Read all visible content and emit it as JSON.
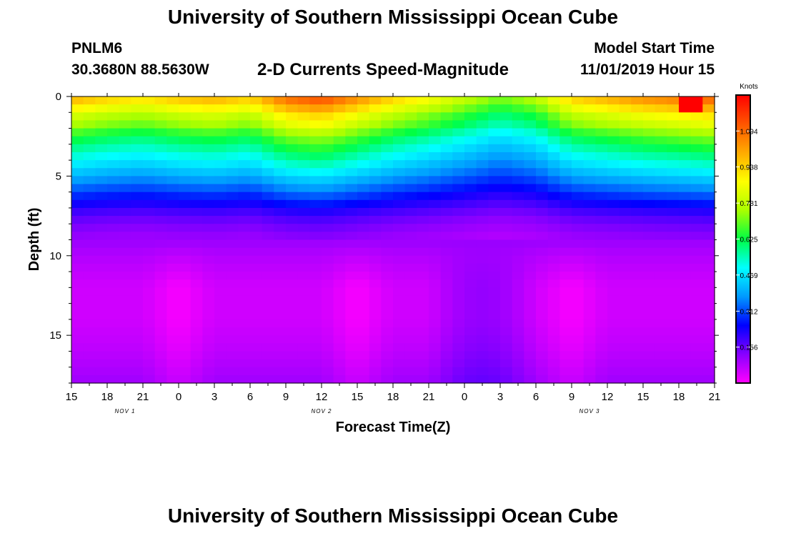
{
  "header": {
    "title": "University of Southern Mississippi Ocean Cube",
    "station": "PNLM6",
    "coords": "30.3680N 88.5630W",
    "subtitle": "2-D Currents Speed-Magnitude",
    "model_start_label": "Model Start Time",
    "model_start_value": "11/01/2019 Hour 15"
  },
  "footer": {
    "title": "University of Southern Mississippi Ocean Cube"
  },
  "chart_data": {
    "type": "heatmap",
    "title": "2-D Currents Speed-Magnitude",
    "xlabel": "Forecast Time(Z)",
    "ylabel": "Depth (ft)",
    "x_tick_labels": [
      "15",
      "18",
      "21",
      "0",
      "3",
      "6",
      "9",
      "12",
      "15",
      "18",
      "21",
      "0",
      "3",
      "6",
      "9",
      "12",
      "15",
      "18",
      "21"
    ],
    "x_range_hours": [
      0,
      54
    ],
    "day_labels": [
      {
        "text": "NOV 1",
        "hour": 4.5
      },
      {
        "text": "NOV 2",
        "hour": 21
      },
      {
        "text": "NOV 3",
        "hour": 43.5
      }
    ],
    "y_ticks": [
      0,
      5,
      10,
      15
    ],
    "ylim": [
      0,
      18
    ],
    "colorbar": {
      "label": "Knots",
      "ticks": [
        "1.094",
        "0.938",
        "0.781",
        "0.625",
        "0.469",
        "0.312",
        "0.156"
      ],
      "range": [
        0,
        1.25
      ],
      "colors": [
        "#ff00ff",
        "#8800ff",
        "#0000ff",
        "#0099ff",
        "#00ffff",
        "#00ff44",
        "#aaff00",
        "#ffff00",
        "#ffaa00",
        "#ff5500",
        "#ff0000"
      ]
    },
    "surface_speed_profile": [
      {
        "depth": 0.0,
        "speed": 0.98
      },
      {
        "depth": 0.5,
        "speed": 0.96
      },
      {
        "depth": 1.0,
        "speed": 0.82
      },
      {
        "depth": 1.5,
        "speed": 0.8
      },
      {
        "depth": 2.0,
        "speed": 0.72
      },
      {
        "depth": 2.5,
        "speed": 0.65
      },
      {
        "depth": 3.5,
        "speed": 0.55
      },
      {
        "depth": 4.5,
        "speed": 0.46
      },
      {
        "depth": 5.5,
        "speed": 0.36
      },
      {
        "depth": 6.5,
        "speed": 0.26
      },
      {
        "depth": 7.5,
        "speed": 0.17
      },
      {
        "depth": 8.5,
        "speed": 0.12
      },
      {
        "depth": 10.0,
        "speed": 0.08
      },
      {
        "depth": 12.0,
        "speed": 0.05
      },
      {
        "depth": 14.0,
        "speed": 0.05
      },
      {
        "depth": 16.0,
        "speed": 0.07
      },
      {
        "depth": 18.0,
        "speed": 0.1
      }
    ],
    "time_modulation": [
      {
        "hour": 0,
        "factor": 1.0
      },
      {
        "hour": 3,
        "factor": 0.95
      },
      {
        "hour": 6,
        "factor": 0.92
      },
      {
        "hour": 9,
        "factor": 0.97
      },
      {
        "hour": 12,
        "factor": 1.0
      },
      {
        "hour": 15,
        "factor": 0.95
      },
      {
        "hour": 18,
        "factor": 1.1
      },
      {
        "hour": 21,
        "factor": 1.15
      },
      {
        "hour": 24,
        "factor": 1.05
      },
      {
        "hour": 27,
        "factor": 0.95
      },
      {
        "hour": 30,
        "factor": 0.88
      },
      {
        "hour": 33,
        "factor": 0.8
      },
      {
        "hour": 36,
        "factor": 0.72
      },
      {
        "hour": 39,
        "factor": 0.78
      },
      {
        "hour": 42,
        "factor": 0.95
      },
      {
        "hour": 45,
        "factor": 1.0
      },
      {
        "hour": 48,
        "factor": 1.05
      },
      {
        "hour": 51,
        "factor": 1.08
      },
      {
        "hour": 54,
        "factor": 1.12
      }
    ],
    "deep_minimum_hours": [
      [
        6,
        12
      ],
      [
        21,
        27
      ],
      [
        39,
        45
      ]
    ],
    "max_speed_hour": 52
  }
}
